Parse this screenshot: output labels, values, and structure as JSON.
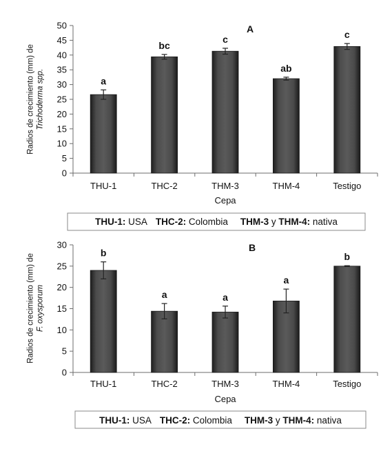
{
  "chart_data": [
    {
      "type": "bar",
      "panel_label": "A",
      "categories": [
        "THU-1",
        "THC-2",
        "THM-3",
        "THM-4",
        "Testigo"
      ],
      "values": [
        26.6,
        39.4,
        41.3,
        32.0,
        42.9
      ],
      "errors": [
        1.6,
        0.8,
        1.0,
        0.5,
        1.0
      ],
      "significance": [
        "a",
        "bc",
        "c",
        "ab",
        "c"
      ],
      "xlabel": "Cepa",
      "ylabel_line1": "Radios de crecimiento (mm) de",
      "ylabel_line2": "Trichoderma spp.",
      "ylim": [
        0,
        50
      ],
      "yticks": [
        0,
        5,
        10,
        15,
        20,
        25,
        30,
        35,
        40,
        45,
        50
      ],
      "grid": false,
      "bar_color": "#3a3a3a",
      "legend_text": {
        "key1": "THU-1:",
        "val1": " USA",
        "key2": "THC-2:",
        "val2": " Colombia",
        "key3": "THM-3",
        "mid3": " y ",
        "key4": "THM-4:",
        "val4": " nativa"
      }
    },
    {
      "type": "bar",
      "panel_label": "B",
      "categories": [
        "THU-1",
        "THC-2",
        "THM-3",
        "THM-4",
        "Testigo"
      ],
      "values": [
        24.0,
        14.4,
        14.2,
        16.8,
        25.0
      ],
      "errors": [
        2.0,
        1.8,
        1.4,
        2.8,
        0.1
      ],
      "significance": [
        "b",
        "a",
        "a",
        "a",
        "b"
      ],
      "xlabel": "Cepa",
      "ylabel_line1": "Radios de crecimiento (mm) de",
      "ylabel_line2": "F. oxysporum",
      "ylim": [
        0,
        30
      ],
      "yticks": [
        0,
        5,
        10,
        15,
        20,
        25,
        30
      ],
      "grid": false,
      "bar_color": "#3a3a3a",
      "legend_text": {
        "key1": "THU-1:",
        "val1": " USA",
        "key2": "THC-2:",
        "val2": " Colombia",
        "key3": "THM-3",
        "mid3": " y ",
        "key4": "THM-4:",
        "val4": " nativa"
      }
    }
  ]
}
